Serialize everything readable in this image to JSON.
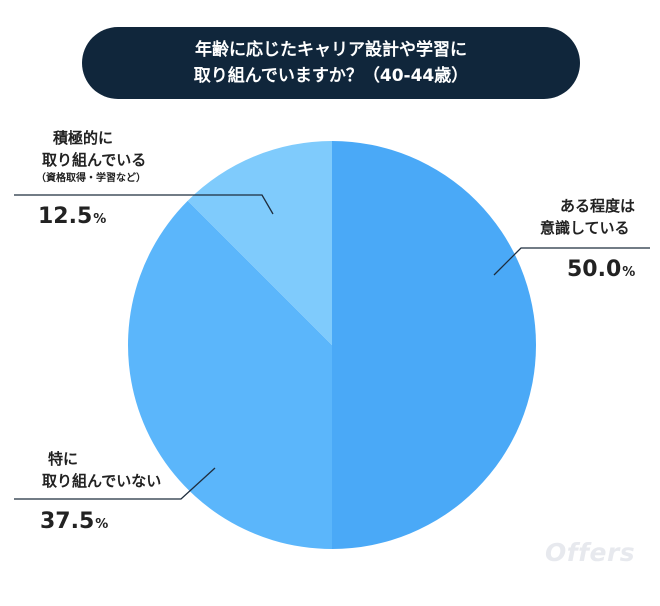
{
  "title": {
    "line1": "年齢に応じたキャリア設計や学習に",
    "line2": "取り組んでいますか？（40-44歳）"
  },
  "chart_data": {
    "type": "pie",
    "slices": [
      {
        "name": "ある程度は意識している",
        "value": 50.0,
        "color": "#4aa9f7"
      },
      {
        "name": "特に取り組んでいない",
        "value": 37.5,
        "color": "#5bb6fb"
      },
      {
        "name": "積極的に取り組んでいる（資格取得・学習など）",
        "value": 12.5,
        "color": "#7fcbfc"
      }
    ]
  },
  "labels": {
    "aware": {
      "line1": "ある程度は",
      "line2": "意識している",
      "value": "50.0",
      "unit": "%"
    },
    "none": {
      "line1": "特に",
      "line2": "取り組んでいない",
      "value": "37.5",
      "unit": "%"
    },
    "active": {
      "line1": "積極的に",
      "line2": "取り組んでいる",
      "sub": "（資格取得・学習など）",
      "value": "12.5",
      "unit": "%"
    }
  },
  "brand": "Offers"
}
